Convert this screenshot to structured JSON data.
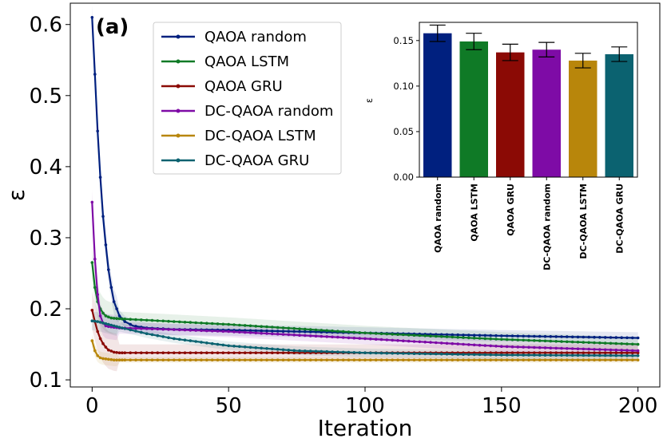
{
  "chart_data": [
    {
      "type": "line",
      "panel_label": "(a)",
      "xlabel": "Iteration",
      "ylabel": "ε",
      "xlim": [
        -8,
        208
      ],
      "ylim": [
        0.09,
        0.63
      ],
      "xticks": [
        0,
        50,
        100,
        150,
        200
      ],
      "xtick_labels": [
        "0",
        "50",
        "100",
        "150",
        "200"
      ],
      "yticks": [
        0.1,
        0.2,
        0.3,
        0.4,
        0.5,
        0.6
      ],
      "ytick_labels": [
        "0.1",
        "0.2",
        "0.3",
        "0.4",
        "0.5",
        "0.6"
      ],
      "legend_position": "upper-center",
      "series": [
        {
          "name": "QAOA random",
          "label": "QAOA random",
          "color": "#00207f",
          "x": [
            0,
            1,
            2,
            3,
            4,
            5,
            6,
            7,
            8,
            10,
            12,
            15,
            20,
            30,
            50,
            100,
            150,
            200
          ],
          "y": [
            0.61,
            0.53,
            0.45,
            0.385,
            0.33,
            0.29,
            0.255,
            0.23,
            0.21,
            0.19,
            0.182,
            0.176,
            0.173,
            0.171,
            0.17,
            0.166,
            0.162,
            0.159
          ],
          "band": 0.008
        },
        {
          "name": "QAOA LSTM",
          "label": "QAOA LSTM",
          "color": "#0f7a26",
          "x": [
            0,
            1,
            2,
            3,
            4,
            5,
            7,
            10,
            15,
            20,
            30,
            50,
            100,
            150,
            200
          ],
          "y": [
            0.265,
            0.23,
            0.21,
            0.2,
            0.194,
            0.19,
            0.187,
            0.186,
            0.185,
            0.184,
            0.182,
            0.178,
            0.166,
            0.157,
            0.15
          ],
          "band": 0.01
        },
        {
          "name": "QAOA GRU",
          "label": "QAOA GRU",
          "color": "#8b0a05",
          "x": [
            0,
            1,
            2,
            3,
            4,
            5,
            6,
            8,
            10,
            15,
            200
          ],
          "y": [
            0.198,
            0.182,
            0.168,
            0.158,
            0.151,
            0.146,
            0.142,
            0.139,
            0.138,
            0.138,
            0.138
          ],
          "band": 0.012
        },
        {
          "name": "DC-QAOA random",
          "label": "DC-QAOA random",
          "color": "#7e0ba6",
          "x": [
            0,
            1,
            2,
            3,
            4,
            5,
            6,
            8,
            10,
            20,
            50,
            100,
            150,
            200
          ],
          "y": [
            0.35,
            0.27,
            0.22,
            0.19,
            0.18,
            0.176,
            0.175,
            0.174,
            0.173,
            0.172,
            0.168,
            0.158,
            0.147,
            0.141
          ],
          "band": 0.008
        },
        {
          "name": "DC-QAOA LSTM",
          "label": "DC-QAOA LSTM",
          "color": "#b8860b",
          "x": [
            0,
            1,
            2,
            3,
            4,
            6,
            8,
            10,
            200
          ],
          "y": [
            0.155,
            0.141,
            0.134,
            0.131,
            0.13,
            0.129,
            0.128,
            0.128,
            0.128
          ],
          "band": 0.004
        },
        {
          "name": "DC-QAOA GRU",
          "label": "DC-QAOA GRU",
          "color": "#0b6270",
          "x": [
            0,
            2,
            4,
            6,
            8,
            10,
            20,
            30,
            50,
            75,
            100,
            150,
            200
          ],
          "y": [
            0.183,
            0.182,
            0.18,
            0.178,
            0.176,
            0.174,
            0.165,
            0.158,
            0.148,
            0.141,
            0.138,
            0.135,
            0.134
          ],
          "band": 0.006
        }
      ]
    },
    {
      "type": "bar",
      "ylabel": "ε",
      "ylim": [
        0,
        0.17
      ],
      "yticks": [
        0.0,
        0.05,
        0.1,
        0.15
      ],
      "ytick_labels": [
        "0.00",
        "0.05",
        "0.10",
        "0.15"
      ],
      "categories": [
        "QAOA random",
        "QAOA LSTM",
        "QAOA GRU",
        "DC-QAOA random",
        "DC-QAOA LSTM",
        "DC-QAOA GRU"
      ],
      "values": [
        0.158,
        0.149,
        0.137,
        0.14,
        0.128,
        0.135
      ],
      "errors": [
        0.009,
        0.009,
        0.009,
        0.008,
        0.008,
        0.008
      ],
      "colors": [
        "#00207f",
        "#0f7a26",
        "#8b0a05",
        "#7e0ba6",
        "#b8860b",
        "#0b6270"
      ]
    }
  ]
}
